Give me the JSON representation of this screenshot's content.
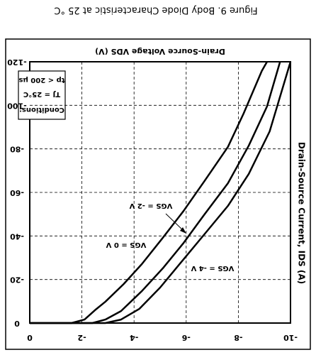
{
  "chart_data": {
    "type": "line",
    "title": "Figure 9. Body Diode Characteristic at 25 °C",
    "x_label": "Drain-Source Voltage VDS (V)",
    "y_label": "Drain-Source Current, IDS (A)",
    "conditions": [
      "Conditions:",
      "TJ = 25°C",
      "tp < 200 µs"
    ],
    "xlim": [
      0,
      -10
    ],
    "xticks": [
      0,
      -2,
      -4,
      -6,
      -8,
      -10
    ],
    "ylim": [
      0,
      -120
    ],
    "yticks": [
      0,
      -20,
      -40,
      -60,
      -80,
      -100,
      -120
    ],
    "grid": true,
    "series": [
      {
        "name": "VGS = 0 V",
        "color": "#000000",
        "x": [
          0,
          -1.6,
          -2.1,
          -2.5,
          -2.9,
          -3.6,
          -4.3,
          -5.1,
          -5.9,
          -6.7,
          -7.6,
          -8.2,
          -8.9,
          -9.1
        ],
        "values": [
          0,
          0,
          -1.6,
          -5.9,
          -9.8,
          -17.9,
          -27.1,
          -39.1,
          -51.5,
          -65.2,
          -80.9,
          -96.2,
          -115.8,
          -120
        ]
      },
      {
        "name": "VGS = -2 V",
        "color": "#000000",
        "x": [
          0,
          -2.4,
          -2.9,
          -3.5,
          -4.3,
          -5.1,
          -5.9,
          -6.7,
          -7.6,
          -8.4,
          -9.1,
          -9.6
        ],
        "values": [
          0,
          0,
          -1.6,
          -5.5,
          -14.7,
          -25.1,
          -36.8,
          -49.9,
          -64.2,
          -81.5,
          -99.5,
          -120
        ]
      },
      {
        "name": "VGS = -4 V",
        "color": "#000000",
        "x": [
          0,
          -2.9,
          -3.5,
          -4.2,
          -5.0,
          -5.9,
          -6.7,
          -7.6,
          -8.4,
          -9.2,
          -10.0
        ],
        "values": [
          0,
          0,
          -1.6,
          -6.5,
          -16.3,
          -29.3,
          -40.8,
          -53.8,
          -68.5,
          -88.0,
          -120
        ]
      }
    ]
  }
}
